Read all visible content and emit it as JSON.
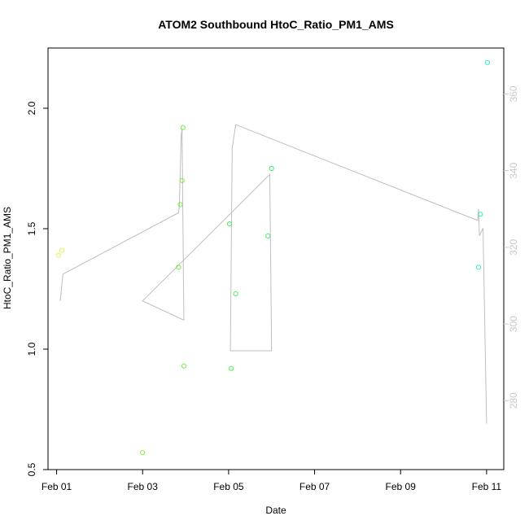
{
  "chart_data": {
    "type": "scatter",
    "title": "ATOM2 Southbound HtoC_Ratio_PM1_AMS",
    "xlabel": "Date",
    "ylabel": "HtoC_Ratio_PM1_AMS",
    "xlim": [
      "2017-01-31 19:12",
      "2017-02-11 09:36"
    ],
    "ylim": [
      0.5,
      2.25
    ],
    "y2lim": [
      262,
      372
    ],
    "grid": false,
    "x_ticks": [
      {
        "date": "2017-02-01 00:00",
        "label": "Feb 01"
      },
      {
        "date": "2017-02-03 00:00",
        "label": "Feb 03"
      },
      {
        "date": "2017-02-05 00:00",
        "label": "Feb 05"
      },
      {
        "date": "2017-02-07 00:00",
        "label": "Feb 07"
      },
      {
        "date": "2017-02-09 00:00",
        "label": "Feb 09"
      },
      {
        "date": "2017-02-11 00:00",
        "label": "Feb 11"
      }
    ],
    "y_ticks": [
      "0.5",
      "1.0",
      "1.5",
      "2.0"
    ],
    "y2_ticks": [
      "280",
      "300",
      "320",
      "340",
      "360"
    ],
    "points": [
      {
        "x": "2017-02-01 01:00",
        "y": 1.39,
        "color": "#e6f05a"
      },
      {
        "x": "2017-02-01 03:00",
        "y": 1.41,
        "color": "#e6f05a"
      },
      {
        "x": "2017-02-03 00:00",
        "y": 0.57,
        "color": "#8ced3c"
      },
      {
        "x": "2017-02-03 20:00",
        "y": 1.34,
        "color": "#76ef42"
      },
      {
        "x": "2017-02-03 21:00",
        "y": 1.6,
        "color": "#76ef42"
      },
      {
        "x": "2017-02-03 22:00",
        "y": 1.7,
        "color": "#76ef42"
      },
      {
        "x": "2017-02-03 22:30",
        "y": 1.92,
        "color": "#76ef42"
      },
      {
        "x": "2017-02-03 23:00",
        "y": 0.93,
        "color": "#76ef42"
      },
      {
        "x": "2017-02-05 00:30",
        "y": 1.52,
        "color": "#4cf05a"
      },
      {
        "x": "2017-02-05 01:30",
        "y": 0.92,
        "color": "#4cf05a"
      },
      {
        "x": "2017-02-05 04:00",
        "y": 1.23,
        "color": "#4cf05a"
      },
      {
        "x": "2017-02-05 22:00",
        "y": 1.47,
        "color": "#3cef6c"
      },
      {
        "x": "2017-02-06 00:00",
        "y": 1.75,
        "color": "#3cef6c"
      },
      {
        "x": "2017-02-10 19:30",
        "y": 1.34,
        "color": "#3cf0b8"
      },
      {
        "x": "2017-02-10 20:30",
        "y": 1.56,
        "color": "#3cf0b8"
      },
      {
        "x": "2017-02-11 00:30",
        "y": 2.19,
        "color": "#3cf0c8"
      }
    ],
    "line_series": {
      "axis": "right",
      "color": "#bebebe",
      "points": [
        {
          "x": "2017-02-01 02:00",
          "y": 306
        },
        {
          "x": "2017-02-01 03:30",
          "y": 313
        },
        {
          "x": "2017-02-03 20:00",
          "y": 329
        },
        {
          "x": "2017-02-03 20:30",
          "y": 331
        },
        {
          "x": "2017-02-03 21:30",
          "y": 349
        },
        {
          "x": "2017-02-03 22:00",
          "y": 351
        },
        {
          "x": "2017-02-03 23:00",
          "y": 301
        },
        {
          "x": "2017-02-03 00:00",
          "y": 306
        },
        {
          "x": "2017-02-05 23:00",
          "y": 339
        },
        {
          "x": "2017-02-06 00:00",
          "y": 293
        },
        {
          "x": "2017-02-05 01:00",
          "y": 293
        },
        {
          "x": "2017-02-05 02:00",
          "y": 346
        },
        {
          "x": "2017-02-05 04:00",
          "y": 352
        },
        {
          "x": "2017-02-10 19:00",
          "y": 327
        },
        {
          "x": "2017-02-10 19:30",
          "y": 330
        },
        {
          "x": "2017-02-10 20:00",
          "y": 323
        },
        {
          "x": "2017-02-10 22:00",
          "y": 325
        },
        {
          "x": "2017-02-11 00:00",
          "y": 274
        }
      ]
    }
  }
}
